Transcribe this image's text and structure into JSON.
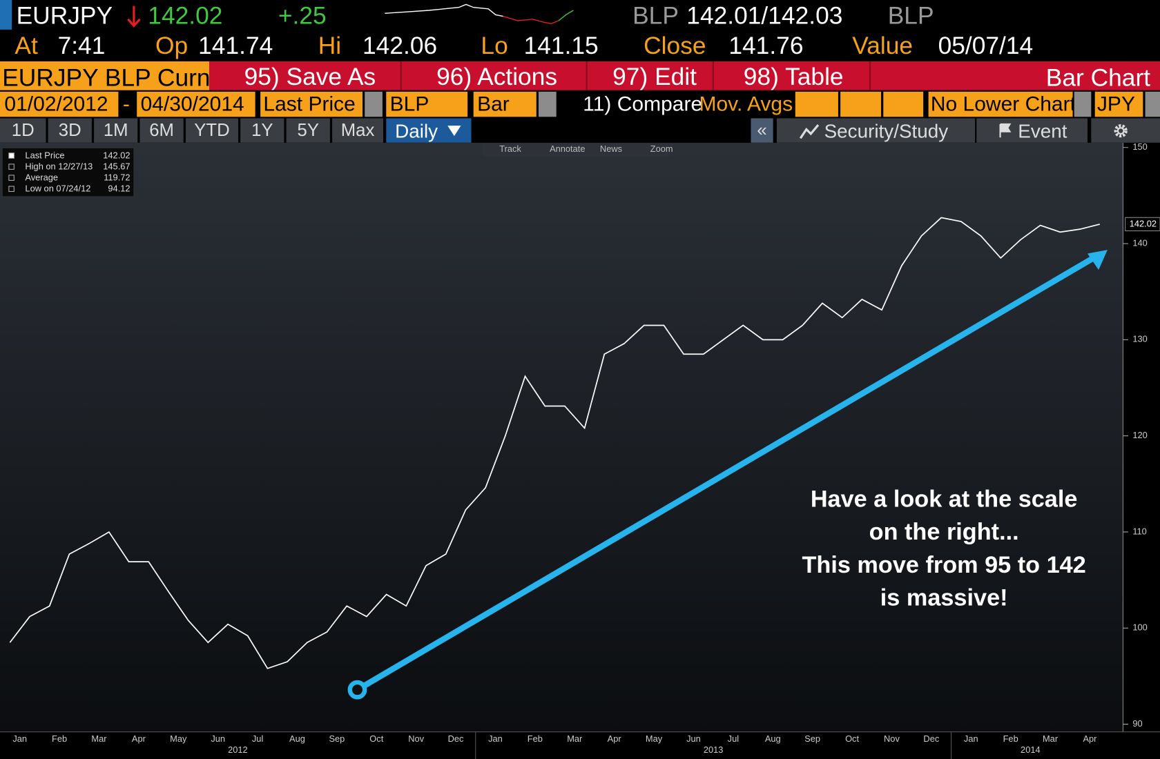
{
  "header": {
    "ticker": "EURJPY",
    "last": "142.02",
    "change": "+.25",
    "bid_src": "BLP",
    "bid_ask": "142.01/142.03",
    "ask_src": "BLP",
    "row2": [
      [
        "At",
        "7:41"
      ],
      [
        "Op",
        "141.74"
      ],
      [
        "Hi",
        "142.06"
      ],
      [
        "Lo",
        "141.15"
      ],
      [
        "Close",
        "141.76"
      ],
      [
        "Value",
        "05/07/14"
      ]
    ]
  },
  "menu": {
    "security": "EURJPY BLP Curnc",
    "buttons": [
      "95) Save As",
      "96) Actions",
      "97) Edit",
      "98) Table"
    ],
    "chart_name": "Bar Chart"
  },
  "settings": {
    "start": "01/02/2012",
    "dash": "-",
    "end": "04/30/2014",
    "field": "Last Price",
    "source": "BLP",
    "style": "Bar",
    "compare": "11) Compare",
    "mov_avgs": "Mov. Avgs",
    "lower": "No Lower Chart",
    "currency": "JPY"
  },
  "periods": [
    "1D",
    "3D",
    "1M",
    "6M",
    "YTD",
    "1Y",
    "5Y",
    "Max"
  ],
  "frequency": "Daily",
  "toolbar": {
    "collapse": "«",
    "security_study": "Security/Study",
    "event": "Event"
  },
  "tools": [
    "Track",
    "Annotate",
    "News",
    "Zoom"
  ],
  "legend": [
    {
      "label": "Last Price",
      "value": "142.02"
    },
    {
      "label": "High on 12/27/13",
      "value": "145.67"
    },
    {
      "label": "Average",
      "value": "119.72"
    },
    {
      "label": "Low on 07/24/12",
      "value": "94.12"
    }
  ],
  "chart_data": {
    "type": "line",
    "color": "#ffffff",
    "values": [
      98.5,
      101.2,
      102.3,
      107.7,
      108.8,
      110,
      106.9,
      106.9,
      103.8,
      100.8,
      98.5,
      100.4,
      99.2,
      95.8,
      96.5,
      98.5,
      99.6,
      102.3,
      101.2,
      103.5,
      102.3,
      106.5,
      107.7,
      112.3,
      114.6,
      120,
      126.2,
      123.1,
      123.1,
      120.8,
      128.5,
      129.6,
      131.5,
      131.5,
      128.5,
      128.5,
      130,
      131.5,
      130,
      130,
      131.5,
      133.8,
      132.3,
      134.2,
      133.1,
      137.7,
      140.8,
      142.7,
      142.3,
      140.8,
      138.5,
      140.4,
      141.9,
      141.2,
      141.5,
      142.02
    ],
    "months": [
      "Jan",
      "Feb",
      "Mar",
      "Apr",
      "May",
      "Jun",
      "Jul",
      "Aug",
      "Sep",
      "Oct",
      "Nov",
      "Dec",
      "Jan",
      "Feb",
      "Mar",
      "Apr",
      "May",
      "Jun",
      "Jul",
      "Aug",
      "Sep",
      "Oct",
      "Nov",
      "Dec",
      "Jan",
      "Feb",
      "Mar",
      "Apr"
    ],
    "years": [
      "2012",
      "2013",
      "2014"
    ],
    "ylim": [
      89.2,
      150.5
    ],
    "yticks": [
      90,
      100,
      110,
      120,
      130,
      140,
      150
    ],
    "price_tag": "142.02",
    "annotation": [
      "Have a look at the scale",
      "on the right...",
      "This move from 95 to 142",
      "is massive!"
    ]
  }
}
